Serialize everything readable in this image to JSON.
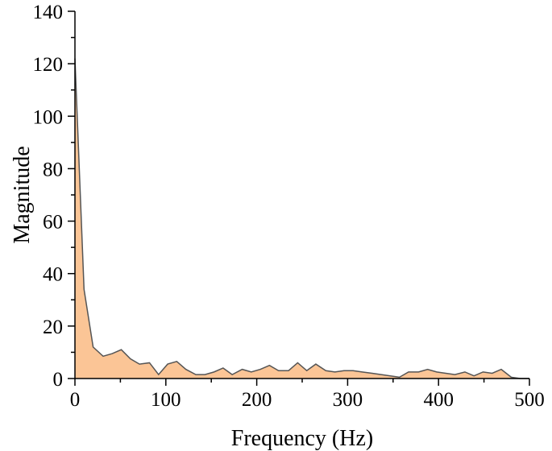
{
  "chart_data": {
    "type": "area",
    "title": "",
    "xlabel": "Frequency (Hz)",
    "ylabel": "Magnitude",
    "xlim": [
      0,
      500
    ],
    "ylim": [
      0,
      140
    ],
    "x_ticks": [
      0,
      100,
      200,
      300,
      400,
      500
    ],
    "y_ticks": [
      0,
      20,
      40,
      60,
      80,
      100,
      120,
      140
    ],
    "grid": false,
    "legend": "none",
    "colors": {
      "fill": "#fbc596",
      "line": "#555555"
    },
    "series": [
      {
        "x": [
          0,
          10,
          20,
          31,
          41,
          51,
          61,
          71,
          82,
          92,
          102,
          112,
          122,
          133,
          143,
          153,
          163,
          173,
          184,
          194,
          204,
          214,
          224,
          235,
          245,
          255,
          265,
          276,
          286,
          296,
          306,
          316,
          327,
          337,
          347,
          357,
          367,
          378,
          388,
          398,
          408,
          418,
          429,
          439,
          449,
          459,
          469,
          480,
          490,
          500
        ],
        "y": [
          122,
          34,
          12,
          8.5,
          9.5,
          11,
          7.5,
          5.5,
          6,
          1.5,
          5.5,
          6.5,
          3.5,
          1.5,
          1.5,
          2.5,
          4,
          1.5,
          3.5,
          2.5,
          3.5,
          5,
          3,
          3,
          6,
          3,
          5.5,
          3,
          2.5,
          3,
          3,
          2.5,
          2,
          1.5,
          1,
          0.5,
          2.5,
          2.5,
          3.5,
          2.5,
          2,
          1.5,
          2.5,
          1,
          2.5,
          2,
          3.5,
          0.5,
          0,
          0
        ]
      }
    ]
  }
}
